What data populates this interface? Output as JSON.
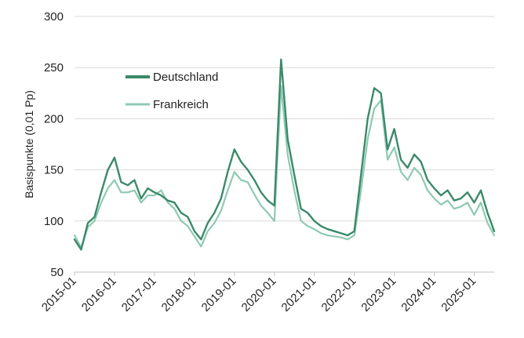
{
  "chart_data": {
    "type": "line",
    "title": "",
    "xlabel": "",
    "ylabel": "Basispunkte (0,01 Pp)",
    "ylim": [
      50,
      300
    ],
    "y_ticks": [
      50,
      100,
      150,
      200,
      250,
      300
    ],
    "x_ticks": [
      "2015-01",
      "2016-01",
      "2017-01",
      "2018-01",
      "2019-01",
      "2020-01",
      "2021-01",
      "2022-01",
      "2023-01",
      "2024-01",
      "2025-01"
    ],
    "x_range": [
      "2015-01",
      "2025-07"
    ],
    "grid": "horizontal",
    "legend_position": "top-left",
    "x": [
      "2015-01",
      "2015-03",
      "2015-05",
      "2015-07",
      "2015-09",
      "2015-11",
      "2016-01",
      "2016-03",
      "2016-05",
      "2016-07",
      "2016-09",
      "2016-11",
      "2017-01",
      "2017-03",
      "2017-05",
      "2017-07",
      "2017-09",
      "2017-11",
      "2018-01",
      "2018-03",
      "2018-05",
      "2018-07",
      "2018-09",
      "2018-11",
      "2019-01",
      "2019-03",
      "2019-05",
      "2019-07",
      "2019-09",
      "2019-11",
      "2020-01",
      "2020-03",
      "2020-05",
      "2020-07",
      "2020-09",
      "2020-11",
      "2021-01",
      "2021-03",
      "2021-05",
      "2021-07",
      "2021-09",
      "2021-11",
      "2022-01",
      "2022-03",
      "2022-05",
      "2022-07",
      "2022-09",
      "2022-11",
      "2023-01",
      "2023-03",
      "2023-05",
      "2023-07",
      "2023-09",
      "2023-11",
      "2024-01",
      "2024-03",
      "2024-05",
      "2024-07",
      "2024-09",
      "2024-11",
      "2025-01",
      "2025-03",
      "2025-05",
      "2025-07"
    ],
    "series": [
      {
        "name": "Deutschland",
        "color": "#3a8a6a",
        "values": [
          82,
          72,
          98,
          104,
          128,
          150,
          162,
          138,
          135,
          140,
          122,
          132,
          128,
          125,
          120,
          118,
          108,
          104,
          90,
          82,
          98,
          108,
          122,
          148,
          170,
          158,
          150,
          140,
          128,
          120,
          115,
          258,
          180,
          145,
          112,
          108,
          100,
          95,
          92,
          90,
          88,
          86,
          90,
          145,
          200,
          230,
          225,
          170,
          190,
          160,
          152,
          165,
          158,
          140,
          132,
          125,
          130,
          120,
          122,
          128,
          118,
          130,
          108,
          90
        ]
      },
      {
        "name": "Frankreich",
        "color": "#8ec9b3",
        "values": [
          86,
          74,
          94,
          100,
          118,
          132,
          140,
          128,
          128,
          130,
          118,
          125,
          125,
          130,
          118,
          112,
          100,
          95,
          85,
          75,
          90,
          98,
          110,
          130,
          148,
          140,
          138,
          126,
          115,
          108,
          100,
          232,
          165,
          130,
          100,
          95,
          92,
          88,
          86,
          85,
          84,
          82,
          86,
          130,
          180,
          210,
          218,
          160,
          172,
          148,
          140,
          152,
          145,
          130,
          122,
          116,
          120,
          112,
          114,
          118,
          106,
          118,
          98,
          86
        ]
      }
    ]
  }
}
